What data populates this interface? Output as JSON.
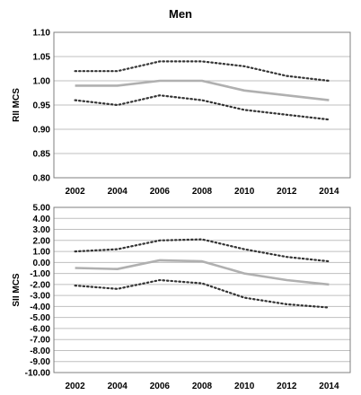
{
  "title": "Men",
  "chart_data": [
    {
      "type": "line",
      "ylabel": "RII MCS",
      "x": [
        2002,
        2004,
        2006,
        2008,
        2010,
        2012,
        2014
      ],
      "ylim": [
        0.8,
        1.1
      ],
      "yticks": [
        "1.10",
        "1.05",
        "1.00",
        "0.95",
        "0.90",
        "0.85",
        "0.80"
      ],
      "grid": true,
      "series": [
        {
          "style": "dotted",
          "color": "#333333",
          "values": [
            1.02,
            1.02,
            1.04,
            1.04,
            1.03,
            1.01,
            1.0
          ]
        },
        {
          "style": "solid",
          "color": "#b0b0b0",
          "values": [
            0.99,
            0.99,
            1.0,
            1.0,
            0.98,
            0.97,
            0.96
          ]
        },
        {
          "style": "dotted",
          "color": "#333333",
          "values": [
            0.96,
            0.95,
            0.97,
            0.96,
            0.94,
            0.93,
            0.92
          ]
        }
      ]
    },
    {
      "type": "line",
      "ylabel": "SII MCS",
      "x": [
        2002,
        2004,
        2006,
        2008,
        2010,
        2012,
        2014
      ],
      "ylim": [
        -10.0,
        5.0
      ],
      "yticks": [
        "5.00",
        "4.00",
        "3.00",
        "2.00",
        "1.00",
        "0.00",
        "-1.00",
        "-2.00",
        "-3.00",
        "-4.00",
        "-5.00",
        "-6.00",
        "-7.00",
        "-8.00",
        "-9.00",
        "-10.00"
      ],
      "grid": true,
      "series": [
        {
          "style": "dotted",
          "color": "#333333",
          "values": [
            1.0,
            1.2,
            2.0,
            2.1,
            1.2,
            0.5,
            0.1
          ]
        },
        {
          "style": "solid",
          "color": "#b0b0b0",
          "values": [
            -0.5,
            -0.6,
            0.2,
            0.1,
            -1.0,
            -1.6,
            -2.0
          ]
        },
        {
          "style": "dotted",
          "color": "#333333",
          "values": [
            -2.1,
            -2.4,
            -1.6,
            -1.9,
            -3.2,
            -3.8,
            -4.1
          ]
        }
      ]
    }
  ]
}
